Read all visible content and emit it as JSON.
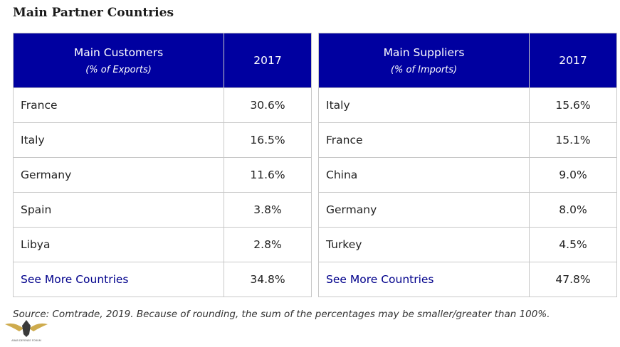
{
  "title": "Main Partner Countries",
  "customers": {
    "header": "Main Customers",
    "subheader": "(% of Exports)",
    "year": "2017",
    "rows": [
      {
        "country": "France",
        "value": "30.6%"
      },
      {
        "country": "Italy",
        "value": "16.5%"
      },
      {
        "country": "Germany",
        "value": "11.6%"
      },
      {
        "country": "Spain",
        "value": "3.8%"
      },
      {
        "country": "Libya",
        "value": "2.8%"
      }
    ],
    "more": {
      "label": "See More Countries",
      "value": "34.8%"
    }
  },
  "suppliers": {
    "header": "Main Suppliers",
    "subheader": "(% of Imports)",
    "year": "2017",
    "rows": [
      {
        "country": "Italy",
        "value": "15.6%"
      },
      {
        "country": "France",
        "value": "15.1%"
      },
      {
        "country": "China",
        "value": "9.0%"
      },
      {
        "country": "Germany",
        "value": "8.0%"
      },
      {
        "country": "Turkey",
        "value": "4.5%"
      }
    ],
    "more": {
      "label": "See More Countries",
      "value": "47.8%"
    }
  },
  "source": "Source: Comtrade, 2019. Because of rounding, the sum of the percentages may be smaller/greater than 100%.",
  "watermark": {
    "text": "ARAB DEFENSE FORUM",
    "colors": {
      "gold": "#c9a23a",
      "dark": "#3a3a3a"
    }
  },
  "colors": {
    "header_bg": "#0000a0",
    "link": "#00008b"
  }
}
